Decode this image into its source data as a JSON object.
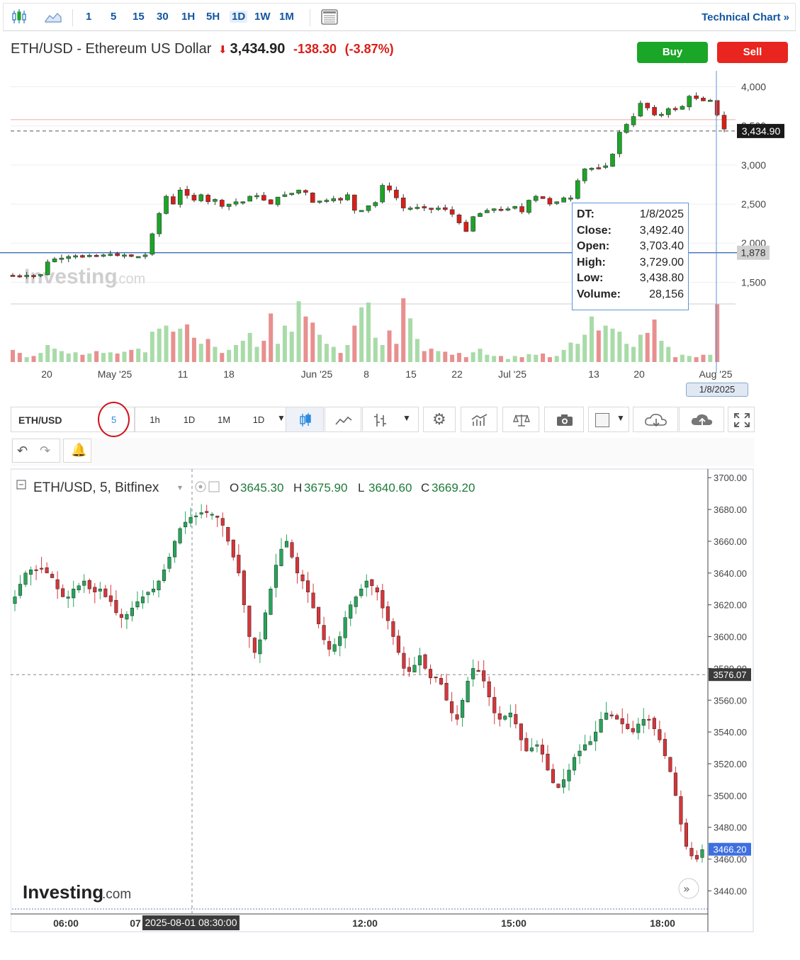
{
  "toolbar": {
    "timeframes": [
      "1",
      "5",
      "15",
      "30",
      "1H",
      "5H",
      "1D",
      "1W",
      "1M"
    ],
    "active_timeframe": "1D",
    "technical_chart_label": "Technical Chart"
  },
  "header": {
    "instrument": "ETH/USD - Ethereum US Dollar",
    "price": "3,434.90",
    "change": "-138.30",
    "change_pct": "(-3.87%)",
    "buy_label": "Buy",
    "sell_label": "Sell"
  },
  "tooltip": {
    "rows": [
      {
        "k": "DT:",
        "v": "1/8/2025"
      },
      {
        "k": "Close:",
        "v": "3,492.40"
      },
      {
        "k": "Open:",
        "v": "3,703.40"
      },
      {
        "k": "High:",
        "v": "3,729.00"
      },
      {
        "k": "Low:",
        "v": "3,438.80"
      },
      {
        "k": "Volume:",
        "v": "28,156"
      }
    ]
  },
  "date_badge": "1/8/2025",
  "lower_toolbar": {
    "symbol": "ETH/USD",
    "interval": "5",
    "buttons": [
      "1h",
      "1D",
      "1M",
      "1D"
    ]
  },
  "lower_legend": {
    "title": "ETH/USD, 5, Bitfinex",
    "o_label": "O",
    "o": "3645.30",
    "h_label": "H",
    "h": "3675.90",
    "l_label": "L",
    "l": "3640.60",
    "c_label": "C",
    "c": "3669.20"
  },
  "cursor_time": "2025-08-01 08:30:00",
  "watermark": {
    "brand": "Investing",
    "suffix": ".com"
  },
  "colors": {
    "up": "#1aa626",
    "down": "#d91e18",
    "accent": "#1256a0",
    "up_vol": "#a8dba8",
    "down_vol": "#e88f8f"
  },
  "chart_data": [
    {
      "type": "candlestick",
      "title": "ETH/USD - Ethereum US Dollar",
      "interval": "1D",
      "x_tick_labels": [
        "20",
        "May '25",
        "11",
        "18",
        "Jun '25",
        "8",
        "15",
        "22",
        "Jul '25",
        "13",
        "20",
        "Aug '25"
      ],
      "y_tick_labels": [
        "1,500",
        "2,000",
        "2,500",
        "3,000",
        "3,500",
        "4,000"
      ],
      "ylim": [
        1250,
        4150
      ],
      "last_price_label": "3,434.90",
      "horizontal_line_label": "1,878",
      "horizontal_line_value": 1878,
      "close_series": [
        1590,
        1580,
        1590,
        1585,
        1600,
        1760,
        1800,
        1810,
        1830,
        1840,
        1820,
        1845,
        1830,
        1850,
        1860,
        1840,
        1850,
        1830,
        1830,
        1850,
        2120,
        2380,
        2600,
        2500,
        2680,
        2610,
        2550,
        2620,
        2530,
        2560,
        2470,
        2500,
        2530,
        2530,
        2600,
        2610,
        2550,
        2500,
        2590,
        2620,
        2640,
        2680,
        2650,
        2520,
        2540,
        2550,
        2570,
        2550,
        2620,
        2420,
        2420,
        2480,
        2520,
        2740,
        2680,
        2580,
        2450,
        2450,
        2460,
        2450,
        2430,
        2450,
        2430,
        2370,
        2260,
        2150,
        2340,
        2380,
        2420,
        2440,
        2420,
        2440,
        2470,
        2400,
        2550,
        2600,
        2570,
        2500,
        2530,
        2580,
        2580,
        2800,
        2950,
        2960,
        2960,
        2990,
        3140,
        3420,
        3520,
        3620,
        3790,
        3730,
        3640,
        3650,
        3720,
        3710,
        3750,
        3880,
        3850,
        3820,
        3830,
        3640,
        3460
      ],
      "volume_series": [
        0.2,
        0.15,
        0.08,
        0.1,
        0.15,
        0.28,
        0.22,
        0.18,
        0.14,
        0.16,
        0.12,
        0.14,
        0.18,
        0.15,
        0.16,
        0.14,
        0.17,
        0.2,
        0.22,
        0.16,
        0.5,
        0.55,
        0.6,
        0.5,
        0.55,
        0.62,
        0.4,
        0.3,
        0.38,
        0.25,
        0.15,
        0.2,
        0.28,
        0.35,
        0.48,
        0.25,
        0.35,
        0.8,
        0.3,
        0.6,
        0.5,
        1.0,
        0.75,
        0.65,
        0.45,
        0.3,
        0.25,
        0.15,
        0.28,
        0.6,
        0.9,
        0.98,
        0.4,
        0.28,
        0.52,
        0.3,
        1.05,
        0.72,
        0.38,
        0.18,
        0.22,
        0.18,
        0.17,
        0.12,
        0.15,
        0.08,
        0.16,
        0.22,
        0.12,
        0.1,
        0.1,
        0.05,
        0.1,
        0.08,
        0.13,
        0.12,
        0.14,
        0.08,
        0.1,
        0.2,
        0.32,
        0.3,
        0.45,
        0.75,
        0.52,
        0.6,
        0.55,
        0.5,
        0.3,
        0.25,
        0.45,
        0.48,
        0.7,
        0.35,
        0.25,
        0.08,
        0.12,
        0.1,
        0.08,
        0.12,
        0.12,
        0.95
      ]
    },
    {
      "type": "candlestick",
      "title": "ETH/USD, 5, Bitfinex",
      "interval": "5",
      "x_tick_labels": [
        "06:00",
        "07",
        "12:00",
        "15:00",
        "18:00"
      ],
      "y_tick_labels": [
        "3440.00",
        "3460.00",
        "3480.00",
        "3500.00",
        "3520.00",
        "3540.00",
        "3560.00",
        "3580.00",
        "3600.00",
        "3620.00",
        "3640.00",
        "3660.00",
        "3680.00",
        "3700.00"
      ],
      "ylim": [
        3429.5,
        3705
      ],
      "crosshair_price_label": "3576.07",
      "crosshair_price": 3576.07,
      "last_price_label": "3466.20",
      "last_price": 3466.2,
      "close_series": [
        3625,
        3633,
        3640,
        3642,
        3642,
        3643,
        3640,
        3637,
        3630,
        3625,
        3625,
        3630,
        3632,
        3635,
        3630,
        3628,
        3630,
        3625,
        3622,
        3615,
        3612,
        3614,
        3618,
        3622,
        3625,
        3628,
        3630,
        3635,
        3642,
        3650,
        3660,
        3668,
        3672,
        3675,
        3676,
        3678,
        3678,
        3677,
        3675,
        3670,
        3660,
        3650,
        3640,
        3620,
        3600,
        3590,
        3598,
        3615,
        3630,
        3645,
        3655,
        3660,
        3650,
        3640,
        3635,
        3628,
        3618,
        3608,
        3598,
        3592,
        3595,
        3600,
        3612,
        3620,
        3625,
        3630,
        3635,
        3632,
        3628,
        3618,
        3610,
        3600,
        3590,
        3580,
        3578,
        3582,
        3588,
        3580,
        3574,
        3574,
        3570,
        3560,
        3552,
        3548,
        3560,
        3572,
        3580,
        3578,
        3572,
        3562,
        3552,
        3548,
        3550,
        3552,
        3545,
        3535,
        3528,
        3530,
        3532,
        3526,
        3516,
        3508,
        3505,
        3510,
        3516,
        3524,
        3528,
        3532,
        3534,
        3540,
        3548,
        3552,
        3550,
        3548,
        3545,
        3542,
        3540,
        3545,
        3548,
        3548,
        3542,
        3535,
        3525,
        3515,
        3500,
        3482,
        3468,
        3462,
        3460,
        3466
      ]
    }
  ]
}
